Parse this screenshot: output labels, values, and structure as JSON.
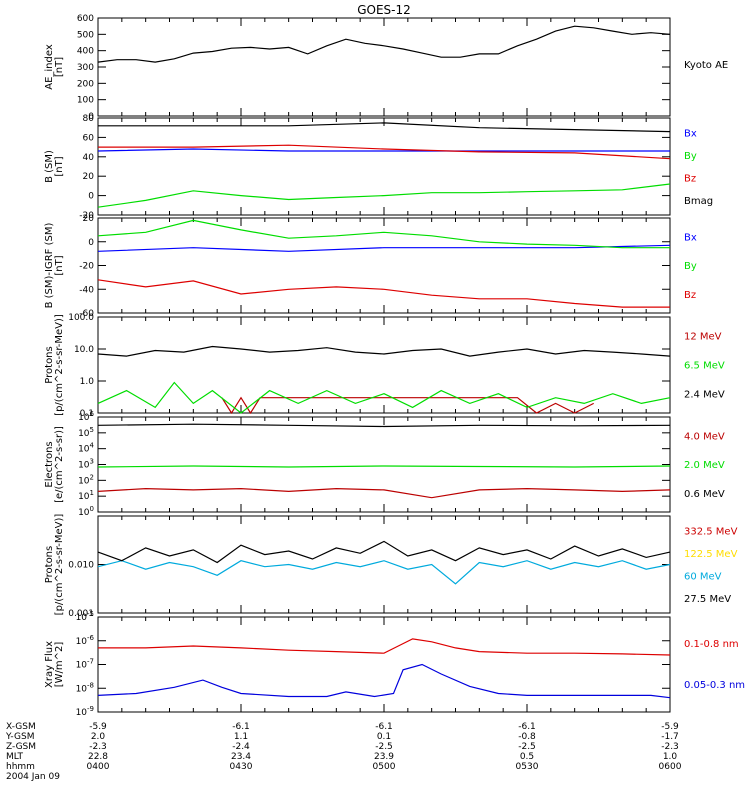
{
  "title": "GOES-12",
  "chart_data": [
    {
      "type": "line",
      "ylabel": "AE_index\n[nT]",
      "ylim": [
        0,
        600
      ],
      "yscale": "linear",
      "yticks": [
        0,
        100,
        200,
        300,
        400,
        500,
        600
      ],
      "series": [
        {
          "name": "Kyoto AE",
          "color": "#000000",
          "x": [
            0,
            4,
            8,
            12,
            16,
            20,
            24,
            28,
            32,
            36,
            40,
            44,
            48,
            52,
            56,
            60,
            64,
            68,
            72,
            76,
            80,
            84,
            88,
            92,
            96,
            100,
            104,
            108,
            112,
            116,
            120
          ],
          "y": [
            330,
            345,
            345,
            330,
            350,
            385,
            395,
            415,
            420,
            410,
            420,
            380,
            430,
            470,
            445,
            430,
            410,
            385,
            360,
            360,
            380,
            380,
            430,
            470,
            520,
            550,
            540,
            520,
            500,
            510,
            500
          ]
        }
      ]
    },
    {
      "type": "line",
      "ylabel": "B (SM)\n[nT]",
      "ylim": [
        -20,
        80
      ],
      "yscale": "linear",
      "yticks": [
        -20,
        0,
        20,
        40,
        60,
        80
      ],
      "series": [
        {
          "name": "Bx",
          "color": "#0000ff",
          "x": [
            0,
            20,
            40,
            60,
            80,
            100,
            120
          ],
          "y": [
            46,
            48,
            46,
            46,
            46,
            46,
            46
          ]
        },
        {
          "name": "By",
          "color": "#00dd00",
          "x": [
            0,
            10,
            20,
            30,
            40,
            50,
            60,
            70,
            80,
            90,
            100,
            110,
            120
          ],
          "y": [
            -12,
            -5,
            5,
            0,
            -4,
            -2,
            0,
            3,
            3,
            4,
            5,
            6,
            12
          ]
        },
        {
          "name": "Bz",
          "color": "#dd0000",
          "x": [
            0,
            20,
            40,
            60,
            80,
            100,
            120
          ],
          "y": [
            50,
            50,
            52,
            48,
            45,
            44,
            38
          ]
        },
        {
          "name": "Bmag",
          "color": "#000000",
          "x": [
            0,
            20,
            40,
            60,
            80,
            100,
            120
          ],
          "y": [
            72,
            72,
            72,
            75,
            70,
            68,
            66
          ]
        }
      ]
    },
    {
      "type": "line",
      "ylabel": "B (SM)-IGRF (SM)\n[nT]",
      "ylim": [
        -60,
        20
      ],
      "yscale": "linear",
      "yticks": [
        -60,
        -40,
        -20,
        0,
        20
      ],
      "series": [
        {
          "name": "Bx",
          "color": "#0000ff",
          "x": [
            0,
            20,
            40,
            60,
            80,
            100,
            120
          ],
          "y": [
            -8,
            -5,
            -8,
            -5,
            -5,
            -5,
            -3
          ]
        },
        {
          "name": "By",
          "color": "#00dd00",
          "x": [
            0,
            10,
            20,
            30,
            40,
            50,
            60,
            70,
            80,
            90,
            100,
            110,
            120
          ],
          "y": [
            5,
            8,
            18,
            10,
            3,
            5,
            8,
            5,
            0,
            -2,
            -3,
            -5,
            -5
          ]
        },
        {
          "name": "Bz",
          "color": "#dd0000",
          "x": [
            0,
            10,
            20,
            30,
            40,
            50,
            60,
            70,
            80,
            90,
            100,
            110,
            120
          ],
          "y": [
            -32,
            -38,
            -33,
            -44,
            -40,
            -38,
            -40,
            -45,
            -48,
            -48,
            -52,
            -55,
            -55
          ]
        }
      ]
    },
    {
      "type": "line",
      "ylabel": "Protons\n[p/(cm^2-s-sr-MeV)]",
      "ylim": [
        0.1,
        100
      ],
      "yscale": "log",
      "yticks": [
        0.1,
        1.0,
        10.0,
        100.0
      ],
      "ytick_labels": [
        "0.1",
        "1.0",
        "10.0",
        "100.0"
      ],
      "series": [
        {
          "name": "12 MeV",
          "color": "#bb0000",
          "x": [
            26,
            28,
            30,
            32,
            34,
            88,
            92,
            96,
            100,
            104
          ],
          "y": [
            0.3,
            0.1,
            0.3,
            0.1,
            0.3,
            0.3,
            0.1,
            0.2,
            0.1,
            0.2
          ]
        },
        {
          "name": "6.5 MeV",
          "color": "#00dd00",
          "x": [
            0,
            6,
            12,
            16,
            20,
            24,
            30,
            36,
            42,
            48,
            54,
            60,
            66,
            72,
            78,
            84,
            90,
            96,
            102,
            108,
            114,
            120
          ],
          "y": [
            0.2,
            0.5,
            0.15,
            0.9,
            0.2,
            0.5,
            0.1,
            0.5,
            0.2,
            0.5,
            0.2,
            0.4,
            0.15,
            0.5,
            0.2,
            0.4,
            0.15,
            0.3,
            0.2,
            0.4,
            0.2,
            0.3
          ]
        },
        {
          "name": "2.4 MeV",
          "color": "#000000",
          "x": [
            0,
            6,
            12,
            18,
            24,
            30,
            36,
            42,
            48,
            54,
            60,
            66,
            72,
            78,
            84,
            90,
            96,
            102,
            108,
            114,
            120
          ],
          "y": [
            7,
            6,
            9,
            8,
            12,
            10,
            8,
            9,
            11,
            8,
            7,
            9,
            10,
            6,
            8,
            10,
            7,
            9,
            8,
            7,
            6
          ]
        }
      ]
    },
    {
      "type": "line",
      "ylabel": "Electrons\n[e/(cm^2-s-sr)]",
      "ylim": [
        1,
        1000000
      ],
      "yscale": "log",
      "yticks": [
        1,
        10,
        100,
        1000,
        10000,
        100000,
        1000000
      ],
      "ytick_labels": [
        "10^0",
        "10^1",
        "10^2",
        "10^3",
        "10^4",
        "10^5",
        "10^6"
      ],
      "series": [
        {
          "name": "4.0 MeV",
          "color": "#bb0000",
          "x": [
            0,
            10,
            20,
            30,
            40,
            50,
            60,
            70,
            80,
            90,
            100,
            110,
            120
          ],
          "y": [
            20,
            30,
            25,
            30,
            20,
            30,
            25,
            8,
            25,
            30,
            25,
            20,
            25
          ]
        },
        {
          "name": "2.0 MeV",
          "color": "#00dd00",
          "x": [
            0,
            20,
            40,
            60,
            80,
            100,
            120
          ],
          "y": [
            700,
            800,
            700,
            800,
            750,
            700,
            800
          ]
        },
        {
          "name": "0.6 MeV",
          "color": "#000000",
          "x": [
            0,
            20,
            40,
            60,
            80,
            100,
            120
          ],
          "y": [
            300000,
            350000,
            300000,
            250000,
            300000,
            280000,
            300000
          ]
        }
      ]
    },
    {
      "type": "line",
      "ylabel": "Protons\n[p/(cm^2-s-sr-MeV)]",
      "ylim": [
        0.001,
        0.1
      ],
      "yscale": "log",
      "yticks": [
        0.001,
        0.01
      ],
      "ytick_labels": [
        "0.001",
        "0.010"
      ],
      "series": [
        {
          "name": "332.5 MeV",
          "color": "#cc0000",
          "x": [],
          "y": []
        },
        {
          "name": "122.5 MeV",
          "color": "#ffdd00",
          "x": [],
          "y": []
        },
        {
          "name": "60 MeV",
          "color": "#00aadd",
          "x": [
            0,
            5,
            10,
            15,
            20,
            25,
            30,
            35,
            40,
            45,
            50,
            55,
            60,
            65,
            70,
            75,
            80,
            85,
            90,
            95,
            100,
            105,
            110,
            115,
            120
          ],
          "y": [
            0.009,
            0.012,
            0.008,
            0.011,
            0.009,
            0.006,
            0.012,
            0.009,
            0.01,
            0.008,
            0.011,
            0.009,
            0.012,
            0.008,
            0.01,
            0.004,
            0.011,
            0.009,
            0.012,
            0.008,
            0.011,
            0.009,
            0.012,
            0.008,
            0.01
          ]
        },
        {
          "name": "27.5 MeV",
          "color": "#000000",
          "x": [
            0,
            5,
            10,
            15,
            20,
            25,
            30,
            35,
            40,
            45,
            50,
            55,
            60,
            65,
            70,
            75,
            80,
            85,
            90,
            95,
            100,
            105,
            110,
            115,
            120
          ],
          "y": [
            0.018,
            0.012,
            0.022,
            0.015,
            0.02,
            0.011,
            0.025,
            0.016,
            0.019,
            0.013,
            0.022,
            0.017,
            0.03,
            0.015,
            0.02,
            0.012,
            0.022,
            0.016,
            0.02,
            0.013,
            0.024,
            0.015,
            0.021,
            0.014,
            0.018
          ]
        }
      ]
    },
    {
      "type": "line",
      "ylabel": "Xray Flux\n[W/m^2]",
      "ylim": [
        1e-09,
        1e-05
      ],
      "yscale": "log",
      "yticks": [
        1e-09,
        1e-08,
        1e-07,
        1e-06,
        1e-05
      ],
      "ytick_labels": [
        "10^-9",
        "10^-8",
        "10^-7",
        "10^-6",
        "10^-5"
      ],
      "series": [
        {
          "name": "0.1-0.8 nm",
          "color": "#dd0000",
          "x": [
            0,
            10,
            20,
            30,
            40,
            50,
            60,
            63,
            66,
            70,
            75,
            80,
            90,
            100,
            110,
            120
          ],
          "y": [
            5e-07,
            5e-07,
            6e-07,
            5e-07,
            4e-07,
            3.5e-07,
            3e-07,
            6e-07,
            1.2e-06,
            9e-07,
            5e-07,
            3.5e-07,
            3e-07,
            3e-07,
            2.8e-07,
            2.5e-07
          ]
        },
        {
          "name": "0.05-0.3 nm",
          "color": "#0000dd",
          "x": [
            0,
            8,
            16,
            22,
            26,
            30,
            40,
            48,
            52,
            58,
            62,
            64,
            68,
            72,
            78,
            84,
            90,
            100,
            110,
            116,
            120
          ],
          "y": [
            5e-09,
            6e-09,
            1.1e-08,
            2.2e-08,
            1.1e-08,
            6e-09,
            4.5e-09,
            4.5e-09,
            7e-09,
            4.5e-09,
            6e-09,
            6e-08,
            1e-07,
            4e-08,
            1.2e-08,
            6e-09,
            5e-09,
            5e-09,
            5e-09,
            5e-09,
            4e-09
          ]
        }
      ]
    }
  ],
  "x_axis": {
    "row_labels": [
      "X-GSM",
      "Y-GSM",
      "Z-GSM",
      "MLT",
      "hhmm",
      "2004 Jan 09"
    ],
    "ticks": [
      {
        "x": 0,
        "values": [
          "-5.9",
          "2.0",
          "-2.3",
          "22.8",
          "0400"
        ]
      },
      {
        "x": 30,
        "values": [
          "-6.1",
          "1.1",
          "-2.4",
          "23.4",
          "0430"
        ]
      },
      {
        "x": 60,
        "values": [
          "-6.1",
          "0.1",
          "-2.5",
          "23.9",
          "0500"
        ]
      },
      {
        "x": 90,
        "values": [
          "-6.1",
          "-0.8",
          "-2.5",
          "0.5",
          "0530"
        ]
      },
      {
        "x": 120,
        "values": [
          "-5.9",
          "-1.7",
          "-2.3",
          "1.0",
          "0600"
        ]
      }
    ],
    "xlim": [
      0,
      120
    ]
  }
}
